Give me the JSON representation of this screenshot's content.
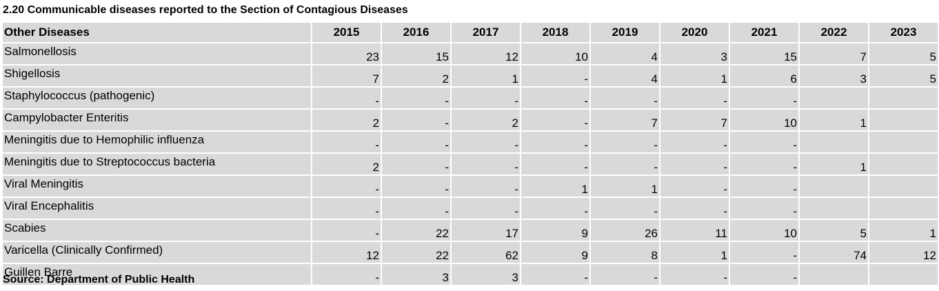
{
  "title": "2.20  Communicable diseases reported to the Section of Contagious Diseases",
  "table": {
    "header_label": "Other Diseases",
    "years": [
      "2015",
      "2016",
      "2017",
      "2018",
      "2019",
      "2020",
      "2021",
      "2022",
      "2023"
    ],
    "rows": [
      {
        "name": "Salmonellosis",
        "values": [
          "23",
          "15",
          "12",
          "10",
          "4",
          "3",
          "15",
          "7",
          "5"
        ]
      },
      {
        "name": "Shigellosis",
        "values": [
          "7",
          "2",
          "1",
          "-",
          "4",
          "1",
          "6",
          "3",
          "5"
        ]
      },
      {
        "name": "Staphylococcus (pathogenic)",
        "values": [
          "-",
          "-",
          "-",
          "-",
          "-",
          "-",
          "-",
          "",
          ""
        ]
      },
      {
        "name": "Campylobacter Enteritis",
        "values": [
          "2",
          "-",
          "2",
          "-",
          "7",
          "7",
          "10",
          "1",
          ""
        ]
      },
      {
        "name": "Meningitis due to Hemophilic influenza",
        "values": [
          "-",
          "-",
          "-",
          "-",
          "-",
          "-",
          "-",
          "",
          ""
        ]
      },
      {
        "name": "Meningitis due to Streptococcus bacteria",
        "values": [
          "2",
          "-",
          "-",
          "-",
          "-",
          "-",
          "-",
          "1",
          ""
        ]
      },
      {
        "name": "Viral Meningitis",
        "values": [
          "-",
          "-",
          "-",
          "1",
          "1",
          "-",
          "-",
          "",
          ""
        ]
      },
      {
        "name": "Viral Encephalitis",
        "values": [
          "-",
          "-",
          "-",
          "-",
          "-",
          "-",
          "-",
          "",
          ""
        ]
      },
      {
        "name": "Scabies",
        "values": [
          "-",
          "22",
          "17",
          "9",
          "26",
          "11",
          "10",
          "5",
          "1"
        ]
      },
      {
        "name": "Varicella (Clinically Confirmed)",
        "values": [
          "12",
          "22",
          "62",
          "9",
          "8",
          "1",
          "-",
          "74",
          "12"
        ]
      },
      {
        "name": "Guillen Barre",
        "values": [
          "-",
          "3",
          "3",
          "-",
          "-",
          "-",
          "-",
          "",
          ""
        ]
      }
    ]
  },
  "source": "Source: Department of Public Health"
}
